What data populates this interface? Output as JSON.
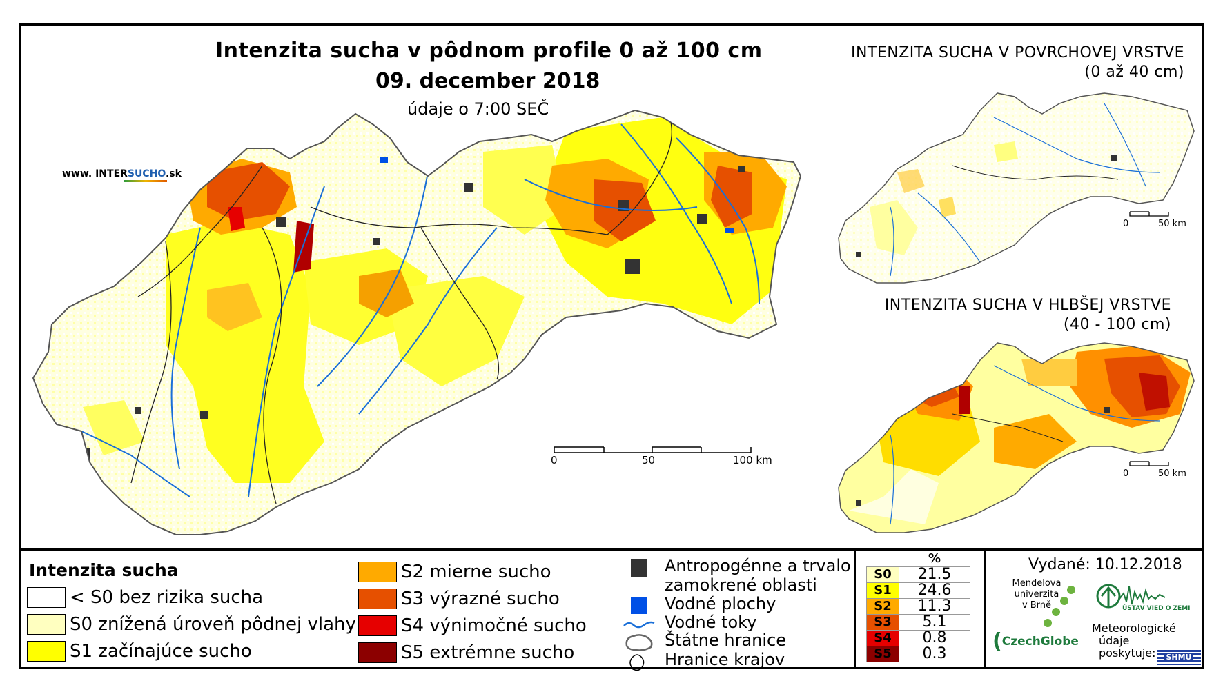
{
  "header": {
    "title": "Intenzita sucha v pôdnom profile 0 až 100 cm",
    "date": "09. december 2018",
    "time_note": "údaje o 7:00 SEČ",
    "website_prefix": "www. INTER",
    "website_highlight": "SUCHO",
    "website_suffix": ".sk"
  },
  "main_map": {
    "scale_labels": [
      "0",
      "50",
      "100 km"
    ]
  },
  "inset_top": {
    "title_line1": "INTENZITA SUCHA V POVRCHOVEJ VRSTVE",
    "title_line2": "(0 až 40 cm)",
    "scale_labels": [
      "0",
      "50 km"
    ]
  },
  "inset_bottom": {
    "title_line1": "INTENZITA SUCHA V HLBŠEJ VRSTVE",
    "title_line2": "(40 - 100 cm)",
    "scale_labels": [
      "0",
      "50 km"
    ]
  },
  "legend": {
    "title": "Intenzita sucha",
    "classes": [
      {
        "label": "< S0 bez rizika sucha",
        "color": "#ffffff"
      },
      {
        "label": "S0 znížená úroveň pôdnej vlahy",
        "color": "#ffffc0"
      },
      {
        "label": "S1 začínajúce sucho",
        "color": "#ffff00"
      },
      {
        "label": "S2 mierne sucho",
        "color": "#ffaa00"
      },
      {
        "label": "S3 výrazné sucho",
        "color": "#e65000"
      },
      {
        "label": "S4 výnimočné sucho",
        "color": "#e60000"
      },
      {
        "label": "S5 extrémne sucho",
        "color": "#8c0000"
      }
    ],
    "symbols": [
      {
        "label": "Antropogénne a trvalo zamokrené oblasti",
        "line1": "Antropogénne a trvalo",
        "line2": "zamokrené oblasti",
        "color": "#333333"
      },
      {
        "label": "Vodné plochy",
        "color": "#0050e6"
      },
      {
        "label": "Vodné toky",
        "color": "#1a6fd8"
      },
      {
        "label": "Štátne hranice",
        "color": "#000000"
      },
      {
        "label": "Hranice krajov",
        "color": "#000000"
      }
    ]
  },
  "percent_table": {
    "header": "%",
    "rows": [
      {
        "class": "S0",
        "value": "21.5",
        "color": "#ffffc0"
      },
      {
        "class": "S1",
        "value": "24.6",
        "color": "#ffff00"
      },
      {
        "class": "S2",
        "value": "11.3",
        "color": "#ffaa00"
      },
      {
        "class": "S3",
        "value": "5.1",
        "color": "#e65000"
      },
      {
        "class": "S4",
        "value": "0.8",
        "color": "#e60000"
      },
      {
        "class": "S5",
        "value": "0.3",
        "color": "#8c0000"
      }
    ]
  },
  "footer": {
    "issued_label": "Vydané: 10.12.2018",
    "mendel_text": [
      "Mendelova",
      "univerzita",
      "v Brně"
    ],
    "czechglobe_text": "CzechGlobe",
    "institute_text": "ÚSTAV VIED O ZEMI",
    "met_text": [
      "Meteorologické",
      "údaje",
      "poskytuje:"
    ],
    "shmu_text": "SHMÚ"
  }
}
